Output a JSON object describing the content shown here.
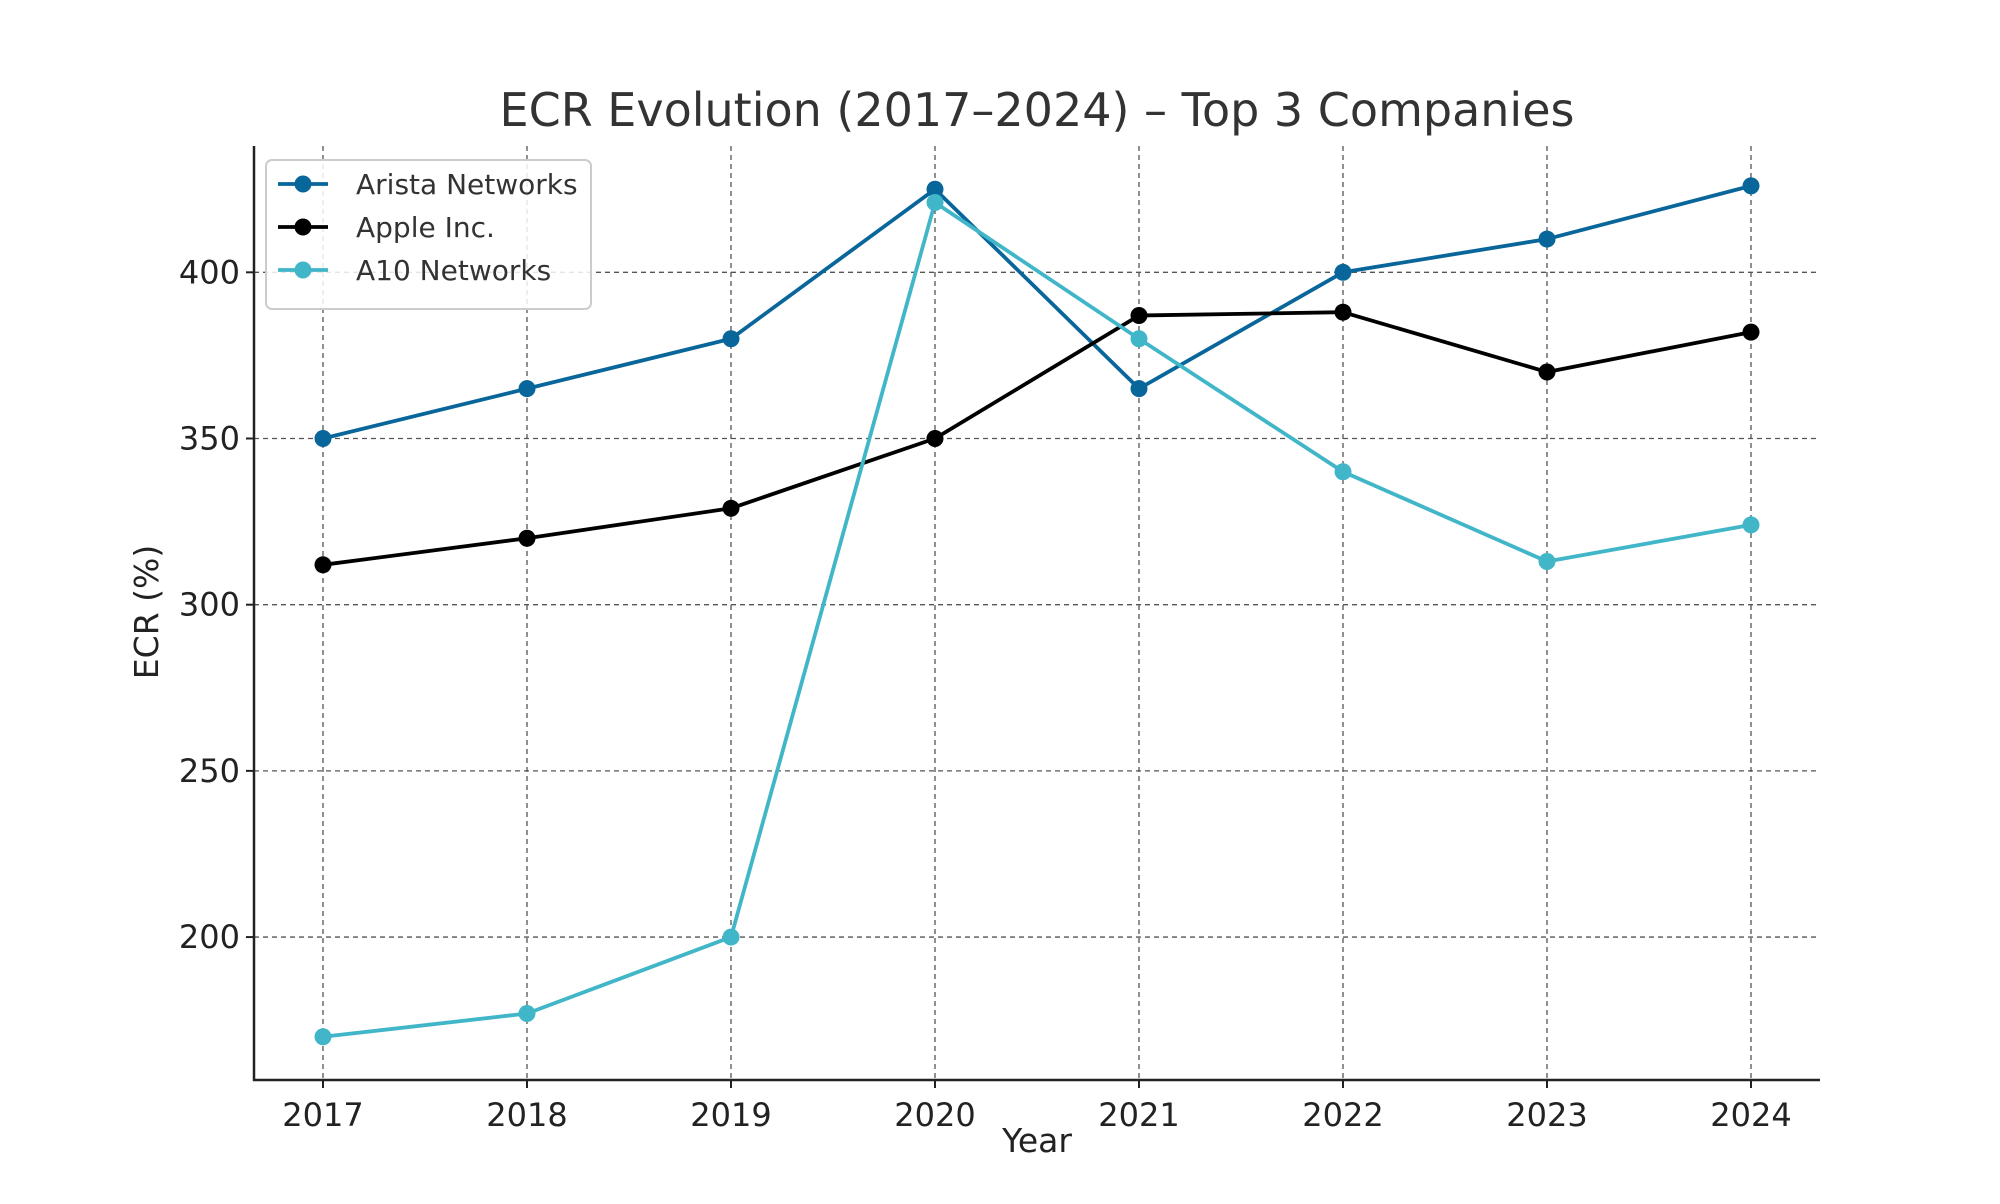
{
  "chart_data": {
    "type": "line",
    "title": "ECR Evolution (2017–2024) – Top 3 Companies",
    "xlabel": "Year",
    "ylabel": "ECR (%)",
    "categories": [
      "2017",
      "2018",
      "2019",
      "2020",
      "2021",
      "2022",
      "2023",
      "2024"
    ],
    "y_ticks": [
      200,
      250,
      300,
      350,
      400
    ],
    "ylim": [
      157,
      438
    ],
    "grid": true,
    "legend_position": "top-left",
    "series": [
      {
        "name": "Arista Networks",
        "color": "#08669a",
        "values": [
          350,
          365,
          380,
          425,
          365,
          400,
          410,
          426
        ]
      },
      {
        "name": "Apple Inc.",
        "color": "#000000",
        "values": [
          312,
          320,
          329,
          350,
          387,
          388,
          370,
          382
        ]
      },
      {
        "name": "A10 Networks",
        "color": "#40b6c8",
        "values": [
          170,
          177,
          200,
          421,
          380,
          340,
          313,
          324
        ]
      }
    ]
  }
}
